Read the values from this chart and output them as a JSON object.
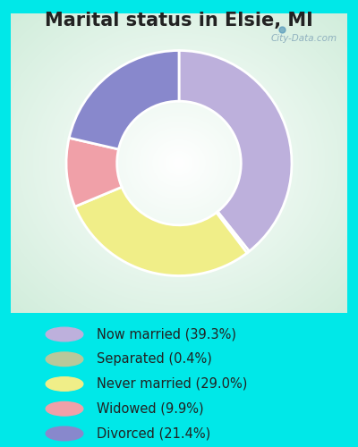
{
  "title": "Marital status in Elsie, MI",
  "title_fontsize": 15,
  "title_fontweight": "bold",
  "slices": [
    39.3,
    0.4,
    29.0,
    9.9,
    21.4
  ],
  "labels": [
    "Now married (39.3%)",
    "Separated (0.4%)",
    "Never married (29.0%)",
    "Widowed (9.9%)",
    "Divorced (21.4%)"
  ],
  "colors": [
    "#BDB0DC",
    "#B8C89A",
    "#F0EE88",
    "#F0A0A8",
    "#8888CC"
  ],
  "bg_outer": "#00E8E8",
  "watermark": "City-Data.com",
  "legend_fontsize": 10.5,
  "startangle": 90,
  "donut_width": 0.45
}
